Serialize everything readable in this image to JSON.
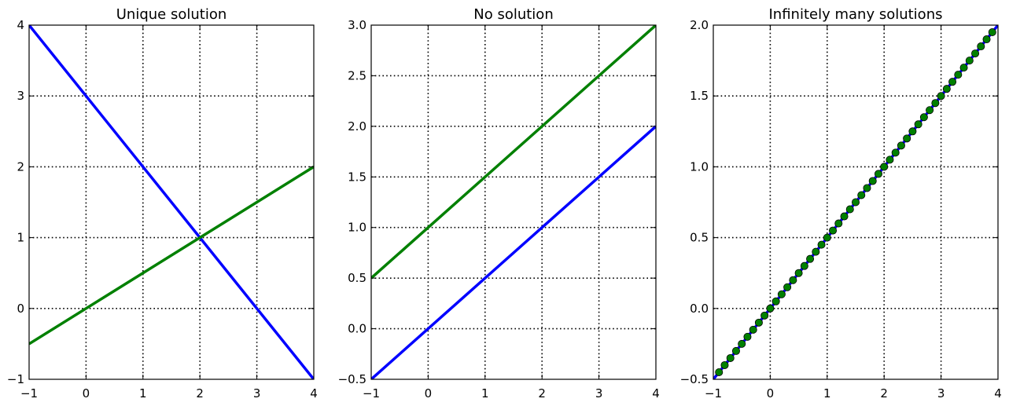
{
  "chart_data": [
    {
      "type": "line",
      "title": "Unique solution",
      "xlim": [
        -1,
        4
      ],
      "ylim": [
        -1,
        4
      ],
      "grid": true,
      "xticks": [
        -1,
        0,
        1,
        2,
        3,
        4
      ],
      "yticks": [
        -1,
        0,
        1,
        2,
        3,
        4
      ],
      "xtick_labels": [
        "−1",
        "0",
        "1",
        "2",
        "3",
        "4"
      ],
      "ytick_labels": [
        "−1",
        "0",
        "1",
        "2",
        "3",
        "4"
      ],
      "series": [
        {
          "color": "#0000ff",
          "x": [
            -1,
            4
          ],
          "y": [
            4,
            -1
          ],
          "marker": "none"
        },
        {
          "color": "#008000",
          "x": [
            -1,
            4
          ],
          "y": [
            -0.5,
            2
          ],
          "marker": "none"
        }
      ]
    },
    {
      "type": "line",
      "title": "No solution",
      "xlim": [
        -1,
        4
      ],
      "ylim": [
        -0.5,
        3.0
      ],
      "grid": true,
      "xticks": [
        -1,
        0,
        1,
        2,
        3,
        4
      ],
      "yticks": [
        -0.5,
        0.0,
        0.5,
        1.0,
        1.5,
        2.0,
        2.5,
        3.0
      ],
      "xtick_labels": [
        "−1",
        "0",
        "1",
        "2",
        "3",
        "4"
      ],
      "ytick_labels": [
        "−0.5",
        "0.0",
        "0.5",
        "1.0",
        "1.5",
        "2.0",
        "2.5",
        "3.0"
      ],
      "series": [
        {
          "color": "#0000ff",
          "x": [
            -1,
            4
          ],
          "y": [
            -0.5,
            2.0
          ],
          "marker": "none"
        },
        {
          "color": "#008000",
          "x": [
            -1,
            4
          ],
          "y": [
            0.5,
            3.0
          ],
          "marker": "none"
        }
      ]
    },
    {
      "type": "line",
      "title": "Infinitely many solutions",
      "xlim": [
        -1,
        4
      ],
      "ylim": [
        -0.5,
        2.0
      ],
      "grid": true,
      "xticks": [
        -1,
        0,
        1,
        2,
        3,
        4
      ],
      "yticks": [
        -0.5,
        0.0,
        0.5,
        1.0,
        1.5,
        2.0
      ],
      "xtick_labels": [
        "−1",
        "0",
        "1",
        "2",
        "3",
        "4"
      ],
      "ytick_labels": [
        "−0.5",
        "0.0",
        "0.5",
        "1.0",
        "1.5",
        "2.0"
      ],
      "series": [
        {
          "color": "#0000ff",
          "x": [
            -1,
            4
          ],
          "y": [
            -0.5,
            2.0
          ],
          "marker": "none"
        },
        {
          "color": "#008000",
          "marker": "circle",
          "linestyle": "none",
          "x": [
            -0.9,
            -0.8,
            -0.7,
            -0.6,
            -0.5,
            -0.4,
            -0.3,
            -0.2,
            -0.1,
            0.0,
            0.1,
            0.2,
            0.3,
            0.4,
            0.5,
            0.6,
            0.7,
            0.8,
            0.9,
            1.0,
            1.1,
            1.2,
            1.3,
            1.4,
            1.5,
            1.6,
            1.7,
            1.8,
            1.9,
            2.0,
            2.1,
            2.2,
            2.3,
            2.4,
            2.5,
            2.6,
            2.7,
            2.8,
            2.9,
            3.0,
            3.1,
            3.2,
            3.3,
            3.4,
            3.5,
            3.6,
            3.7,
            3.8,
            3.9
          ],
          "y": [
            -0.45,
            -0.4,
            -0.35,
            -0.3,
            -0.25,
            -0.2,
            -0.15,
            -0.1,
            -0.05,
            0.0,
            0.05,
            0.1,
            0.15,
            0.2,
            0.25,
            0.3,
            0.35,
            0.4,
            0.45,
            0.5,
            0.55,
            0.6,
            0.65,
            0.7,
            0.75,
            0.8,
            0.85,
            0.9,
            0.95,
            1.0,
            1.05,
            1.1,
            1.15,
            1.2,
            1.25,
            1.3,
            1.35,
            1.4,
            1.45,
            1.5,
            1.55,
            1.6,
            1.65,
            1.7,
            1.75,
            1.8,
            1.85,
            1.9,
            1.95
          ]
        }
      ]
    }
  ]
}
